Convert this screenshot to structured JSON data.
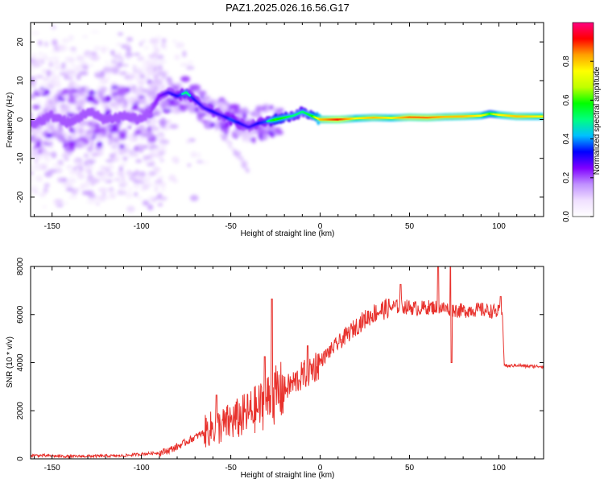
{
  "figure": {
    "title": "PAZ1.2025.026.16.56.G17"
  },
  "chart_data": [
    {
      "type": "heatmap",
      "xlabel": "Height of straight line (km)",
      "ylabel": "Frequency (Hz)",
      "xlim": [
        -162,
        125
      ],
      "ylim": [
        -25,
        25
      ],
      "xticks": [
        -150,
        -100,
        -50,
        0,
        50,
        100
      ],
      "yticks": [
        -20,
        -10,
        0,
        10,
        20
      ],
      "grid": false,
      "colorbar": {
        "label": "Normalized spectral amplitude",
        "range": [
          0.0,
          1.0
        ],
        "ticks": [
          "0.0",
          "0.2",
          "0.4",
          "0.6",
          "0.8"
        ],
        "colormap": [
          "#ffffff",
          "#f0e0ff",
          "#c090ff",
          "#8000ff",
          "#0000ff",
          "#00c0ff",
          "#00ff80",
          "#00ff00",
          "#c0ff00",
          "#ffff00",
          "#ffa000",
          "#ff0000",
          "#ff0080"
        ]
      },
      "ridge": {
        "x": [
          -160,
          -150,
          -140,
          -130,
          -120,
          -110,
          -100,
          -95,
          -90,
          -85,
          -80,
          -75,
          -70,
          -65,
          -60,
          -55,
          -50,
          -45,
          -40,
          -35,
          -30,
          -25,
          -20,
          -15,
          -10,
          -5,
          0,
          10,
          20,
          30,
          40,
          50,
          60,
          70,
          80,
          90,
          95,
          100,
          110,
          125
        ],
        "freq": [
          -1,
          1,
          -1,
          2,
          0,
          1,
          0,
          2,
          6,
          7,
          6,
          7,
          5,
          3,
          2,
          1,
          0,
          -1,
          -2,
          -1,
          -0.5,
          0,
          0.5,
          1,
          2,
          1,
          0,
          0,
          0.3,
          0.5,
          0.4,
          0.6,
          0.5,
          0.7,
          0.8,
          1.0,
          1.5,
          1.2,
          0.8,
          0.8
        ],
        "amplitude": [
          0.15,
          0.2,
          0.15,
          0.2,
          0.2,
          0.18,
          0.2,
          0.25,
          0.3,
          0.35,
          0.4,
          0.5,
          0.4,
          0.35,
          0.4,
          0.35,
          0.45,
          0.4,
          0.35,
          0.4,
          0.45,
          0.6,
          0.55,
          0.5,
          0.5,
          0.55,
          0.8,
          0.9,
          0.75,
          0.8,
          0.75,
          0.85,
          0.85,
          0.8,
          0.8,
          0.75,
          0.6,
          0.75,
          0.8,
          0.75
        ]
      }
    },
    {
      "type": "line",
      "xlabel": "Height of straight line (km)",
      "ylabel": "SNR (10 * v/v)",
      "xlim": [
        -162,
        125
      ],
      "ylim": [
        0,
        8000
      ],
      "xticks": [
        -150,
        -100,
        -50,
        0,
        50,
        100
      ],
      "yticks": [
        0,
        2000,
        4000,
        6000,
        8000
      ],
      "grid": false,
      "series": [
        {
          "color": "#e8322d",
          "x": [
            -162,
            -150,
            -140,
            -130,
            -120,
            -110,
            -100,
            -90,
            -85,
            -80,
            -75,
            -70,
            -65,
            -60,
            -55,
            -50,
            -45,
            -40,
            -35,
            -30,
            -25,
            -20,
            -15,
            -10,
            -5,
            0,
            5,
            10,
            15,
            20,
            25,
            30,
            35,
            40,
            45,
            50,
            55,
            60,
            65,
            70,
            75,
            80,
            85,
            90,
            95,
            100,
            102,
            103,
            105,
            110,
            115,
            120,
            125
          ],
          "y": [
            150,
            120,
            100,
            110,
            120,
            130,
            200,
            250,
            350,
            500,
            700,
            900,
            1100,
            1300,
            1350,
            1550,
            1700,
            1900,
            2100,
            2400,
            2650,
            2900,
            3150,
            3450,
            3700,
            4050,
            4450,
            4800,
            5150,
            5500,
            5800,
            6050,
            6200,
            6300,
            6350,
            6300,
            6250,
            6300,
            6300,
            6250,
            6200,
            6150,
            6200,
            6200,
            6150,
            6100,
            5950,
            3900,
            3850,
            3900,
            3850,
            3850,
            3850
          ]
        }
      ],
      "annotations": [
        {
          "x": -58,
          "peak": 2650
        },
        {
          "x": -31,
          "peak": 4250
        },
        {
          "x": -27,
          "peak": 6650
        },
        {
          "x": -7,
          "peak": 4700
        },
        {
          "x": 45,
          "peak": 7250
        },
        {
          "x": 66,
          "peak": 8000
        },
        {
          "x": 73,
          "peak": 8000
        },
        {
          "x": 73.5,
          "trough": 4000
        },
        {
          "x": 101,
          "peak": 6750
        }
      ]
    }
  ]
}
